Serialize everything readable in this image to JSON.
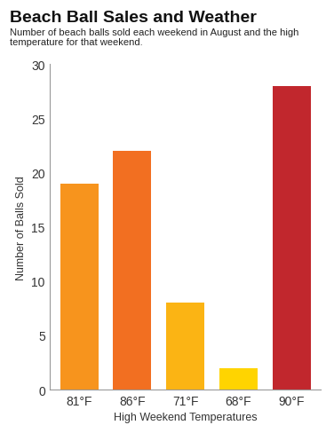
{
  "chart_data": {
    "type": "bar",
    "title": "Beach Ball Sales and Weather",
    "subtitle": "Number of beach balls sold each weekend in August and the high temperature for that weekend.",
    "x_label": "High Weekend Temperatures",
    "y_label": "Number of Balls Sold",
    "categories": [
      "81°F",
      "86°F",
      "71°F",
      "68°F",
      "90°F"
    ],
    "values": [
      19,
      22,
      8,
      2,
      28
    ],
    "colors": [
      "#f7941d",
      "#f26f21",
      "#fbb414",
      "#ffd400",
      "#c1272d"
    ],
    "ylim": [
      0,
      30
    ],
    "yticks": [
      0,
      5,
      10,
      15,
      20,
      25,
      30
    ],
    "grid": false
  }
}
